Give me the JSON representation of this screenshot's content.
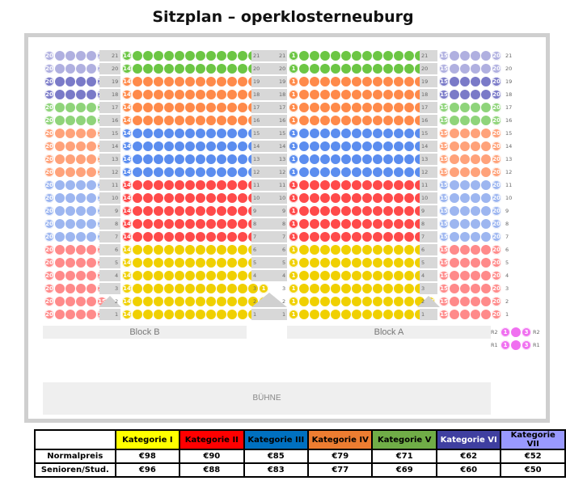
{
  "title": "Sitzplan – operklosterneuburg",
  "colors": {
    "kat1": "#f0d000",
    "kat2": "#ff4a4a",
    "kat3": "#5b8def",
    "kat4": "#ff8a4a",
    "kat5": "#6cc644",
    "kat6": "#7a7ac8",
    "kat7": "#b0b0e0",
    "outer_blue": "#9db6f0",
    "outer_orange": "#ffa27a",
    "outer_green": "#8fd47a",
    "outer_red": "#ff8a8a",
    "loge": "#f070f0"
  },
  "rows": [
    {
      "row": "21",
      "outer": "kat7",
      "inner": "kat5"
    },
    {
      "row": "20",
      "outer": "kat7",
      "inner": "kat5"
    },
    {
      "row": "19",
      "outer": "kat6",
      "inner": "kat4"
    },
    {
      "row": "18",
      "outer": "kat6",
      "inner": "kat4"
    },
    {
      "row": "17",
      "outer": "outer_green",
      "inner": "kat4"
    },
    {
      "row": "16",
      "outer": "outer_green",
      "inner": "kat4"
    },
    {
      "row": "15",
      "outer": "outer_orange",
      "inner": "kat3"
    },
    {
      "row": "14",
      "outer": "outer_orange",
      "inner": "kat3"
    },
    {
      "row": "13",
      "outer": "outer_orange",
      "inner": "kat3"
    },
    {
      "row": "12",
      "outer": "outer_orange",
      "inner": "kat3"
    },
    {
      "row": "11",
      "outer": "outer_blue",
      "inner": "kat2"
    },
    {
      "row": "10",
      "outer": "outer_blue",
      "inner": "kat2"
    },
    {
      "row": "9",
      "outer": "outer_blue",
      "inner": "kat2"
    },
    {
      "row": "8",
      "outer": "outer_blue",
      "inner": "kat2"
    },
    {
      "row": "7",
      "outer": "outer_blue",
      "inner": "kat2"
    },
    {
      "row": "6",
      "outer": "outer_red",
      "inner": "kat1"
    },
    {
      "row": "5",
      "outer": "outer_red",
      "inner": "kat1"
    },
    {
      "row": "4",
      "outer": "outer_red",
      "inner": "kat1"
    },
    {
      "row": "3",
      "outer": "outer_red",
      "inner": "kat1"
    },
    {
      "row": "2",
      "outer": "outer_red",
      "inner": "kat1"
    },
    {
      "row": "1",
      "outer": "outer_red",
      "inner": "kat1"
    }
  ],
  "seat_numbers": {
    "outer_left_first": "20",
    "outer_left_last": "15",
    "inner_left_first": "14",
    "inner_left_last": "1",
    "inner_right_first": "1",
    "inner_right_last": "14",
    "outer_right_first": "15",
    "outer_right_last": "20"
  },
  "blocks": {
    "left": "Block B",
    "right": "Block A"
  },
  "stage": "BÜHNE",
  "loge": {
    "rows": [
      {
        "label": "R2",
        "first": "1",
        "last": "3"
      },
      {
        "label": "R1",
        "first": "1",
        "last": "3"
      }
    ]
  },
  "price_table": {
    "headers": [
      "",
      "Kategorie I",
      "Kategorie II",
      "Kategorie III",
      "Kategorie IV",
      "Kategorie V",
      "Kategorie VI",
      "Kategorie VII"
    ],
    "header_colors": [
      "#ffffff",
      "#ffff00",
      "#ff0000",
      "#0070c0",
      "#ed7d31",
      "#70ad47",
      "#3f3fa0",
      "#9999ff"
    ],
    "rows": [
      {
        "label": "Normalpreis",
        "values": [
          "€98",
          "€90",
          "€85",
          "€79",
          "€71",
          "€62",
          "€52"
        ]
      },
      {
        "label": "Senioren/Stud.",
        "values": [
          "€96",
          "€88",
          "€83",
          "€77",
          "€69",
          "€60",
          "€50"
        ]
      }
    ]
  }
}
